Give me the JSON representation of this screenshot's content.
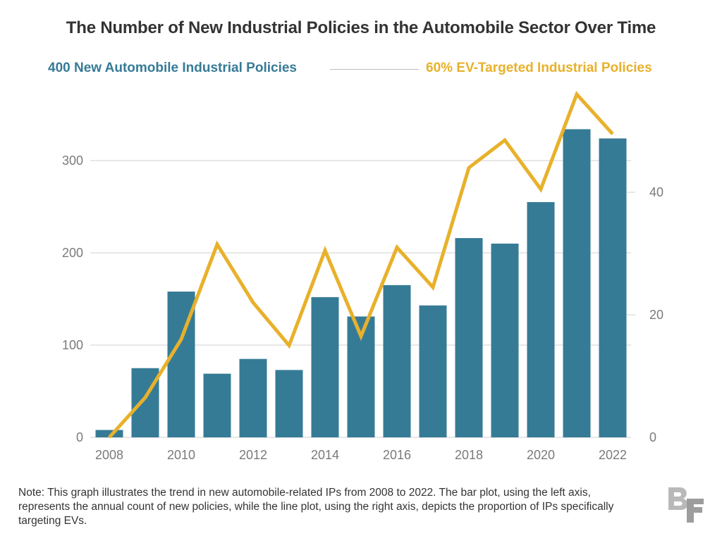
{
  "title": "The Number of New Industrial Policies in the Automobile Sector Over Time",
  "legend": {
    "bars_label": "400 New Automobile Industrial Policies",
    "line_label": "60% EV-Targeted Industrial Policies"
  },
  "note": "Note: This graph illustrates the trend in new automobile-related IPs from 2008 to 2022. The bar plot, using the left axis, represents the annual count of new policies, while the line plot, using the right axis, depicts the proportion of IPs specifically targeting EVs.",
  "logo": {
    "name": "BF logo"
  },
  "colors": {
    "bar": "#367b96",
    "line": "#e8b12b",
    "grid": "#cfcfcf",
    "tick_text": "#7a7a7a",
    "title": "#333333"
  },
  "chart_data": {
    "type": "bar",
    "title": "The Number of New Industrial Policies in the Automobile Sector Over Time",
    "categories": [
      2008,
      2009,
      2010,
      2011,
      2012,
      2013,
      2014,
      2015,
      2016,
      2017,
      2018,
      2019,
      2020,
      2021,
      2022
    ],
    "series": [
      {
        "name": "New Automobile Industrial Policies",
        "type": "bar",
        "axis": "left",
        "values": [
          8,
          75,
          158,
          69,
          85,
          73,
          152,
          131,
          165,
          143,
          216,
          210,
          255,
          334,
          324
        ]
      },
      {
        "name": "EV-Targeted Industrial Policies (%)",
        "type": "line",
        "axis": "right",
        "values": [
          0,
          6.5,
          16,
          31.5,
          22,
          15,
          30.5,
          16.5,
          31,
          24.5,
          44,
          48.5,
          40.5,
          56,
          49.5
        ]
      }
    ],
    "x_ticks": [
      "2008",
      "2010",
      "2012",
      "2014",
      "2016",
      "2018",
      "2020",
      "2022"
    ],
    "left_axis": {
      "ticks": [
        "0",
        "100",
        "200",
        "300"
      ],
      "ylim": [
        0,
        360
      ]
    },
    "right_axis": {
      "ticks": [
        "0",
        "20",
        "40"
      ],
      "ylim": [
        0,
        56
      ]
    },
    "grid": true
  }
}
